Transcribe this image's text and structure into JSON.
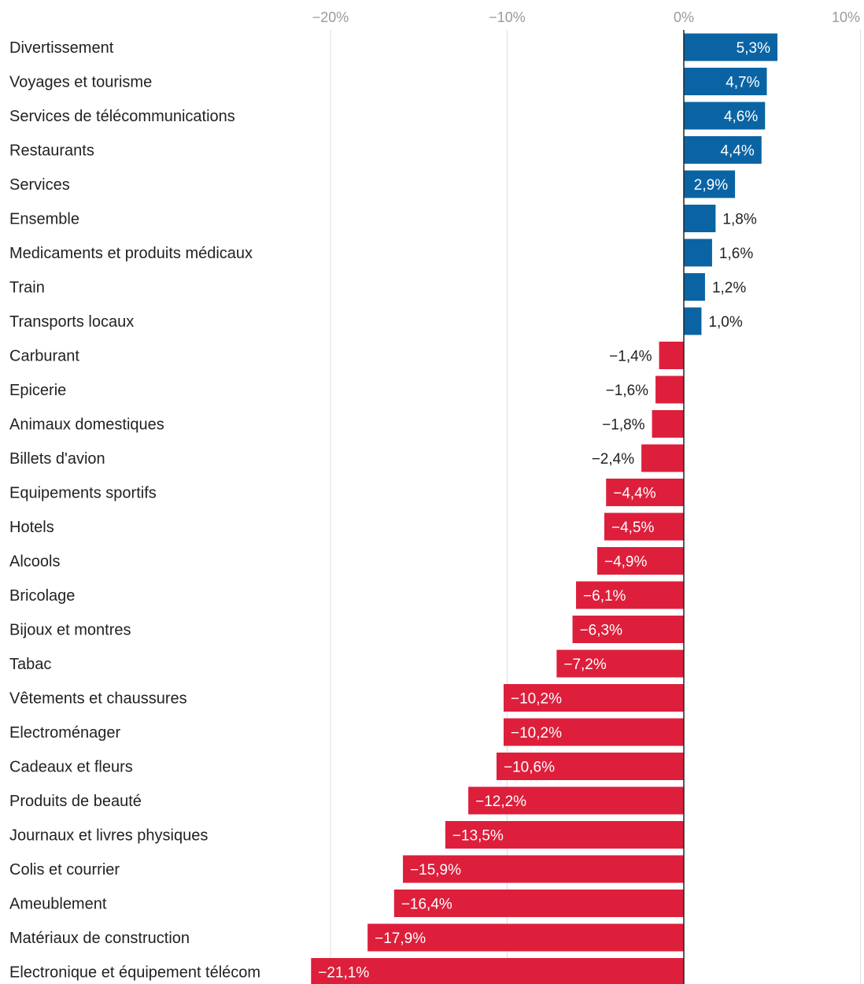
{
  "chart_data": {
    "type": "bar",
    "orientation": "horizontal",
    "title": "",
    "xlabel": "",
    "ylabel": "",
    "xlim": [
      -22,
      10
    ],
    "x_ticks": [
      -20,
      -10,
      0,
      10
    ],
    "x_tick_labels": [
      "−20%",
      "−10%",
      "0%",
      "10%"
    ],
    "grid": true,
    "colors": {
      "positive": "#0a64a4",
      "negative": "#dd1f3c",
      "grid": "#dddddd",
      "zero_line": "#222222"
    },
    "categories": [
      "Divertissement",
      "Voyages et tourisme",
      "Services de télécommunications",
      "Restaurants",
      "Services",
      "Ensemble",
      "Medicaments et produits médicaux",
      "Train",
      "Transports locaux",
      "Carburant",
      "Epicerie",
      "Animaux domestiques",
      "Billets d'avion",
      "Equipements sportifs",
      "Hotels",
      "Alcools",
      "Bricolage",
      "Bijoux et montres",
      "Tabac",
      "Vêtements et chaussures",
      "Electroménager",
      "Cadeaux et fleurs",
      "Produits de beauté",
      "Journaux et livres physiques",
      "Colis et courrier",
      "Ameublement",
      "Matériaux de construction",
      "Electronique et équipement télécom"
    ],
    "values": [
      5.3,
      4.7,
      4.6,
      4.4,
      2.9,
      1.8,
      1.6,
      1.2,
      1.0,
      -1.4,
      -1.6,
      -1.8,
      -2.4,
      -4.4,
      -4.5,
      -4.9,
      -6.1,
      -6.3,
      -7.2,
      -10.2,
      -10.2,
      -10.6,
      -12.2,
      -13.5,
      -15.9,
      -16.4,
      -17.9,
      -21.1
    ],
    "value_labels": [
      "5,3%",
      "4,7%",
      "4,6%",
      "4,4%",
      "2,9%",
      "1,8%",
      "1,6%",
      "1,2%",
      "1,0%",
      "−1,4%",
      "−1,6%",
      "−1,8%",
      "−2,4%",
      "−4,4%",
      "−4,5%",
      "−4,9%",
      "−6,1%",
      "−6,3%",
      "−7,2%",
      "−10,2%",
      "−10,2%",
      "−10,6%",
      "−12,2%",
      "−13,5%",
      "−15,9%",
      "−16,4%",
      "−17,9%",
      "−21,1%"
    ]
  }
}
